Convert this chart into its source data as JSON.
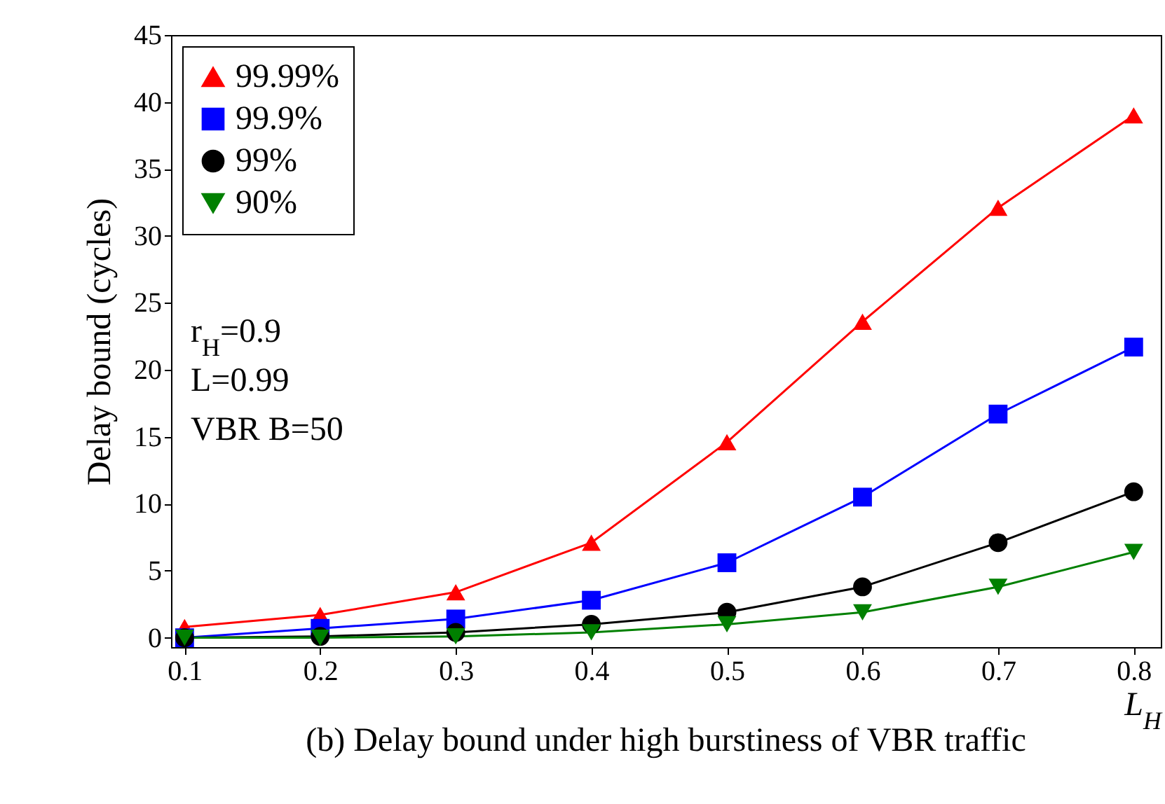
{
  "chart_data": {
    "type": "line",
    "title": "(b) Delay bound under high burstiness of VBR traffic",
    "xlabel": "L$_{H}$",
    "ylabel": "Delay bound (cycles)",
    "x": [
      0.1,
      0.2,
      0.3,
      0.4,
      0.5,
      0.6,
      0.7,
      0.8
    ],
    "series": [
      {
        "name": "99.99%",
        "color": "#ff0000",
        "marker": "triangle",
        "values": [
          0.8,
          1.7,
          3.4,
          7.1,
          14.6,
          23.6,
          32.1,
          39.0
        ]
      },
      {
        "name": "99.9%",
        "color": "#0000ff",
        "marker": "square",
        "values": [
          0.0,
          0.7,
          1.4,
          2.8,
          5.6,
          10.5,
          16.7,
          21.7
        ]
      },
      {
        "name": "99%",
        "color": "#000000",
        "marker": "circle",
        "values": [
          0.0,
          0.1,
          0.4,
          1.0,
          1.9,
          3.8,
          7.1,
          10.9
        ]
      },
      {
        "name": "90%",
        "color": "#008000",
        "marker": "triangle-down",
        "values": [
          0.0,
          0.0,
          0.1,
          0.4,
          1.0,
          1.9,
          3.8,
          6.4
        ]
      }
    ],
    "xlim": [
      0.09,
      0.82
    ],
    "xticks": [
      0.1,
      0.2,
      0.3,
      0.4,
      0.5,
      0.6,
      0.7,
      0.8
    ],
    "ylim": [
      -0.7,
      45
    ],
    "yticks": [
      0,
      5,
      10,
      15,
      20,
      25,
      30,
      35,
      40,
      45
    ],
    "grid": false,
    "legend": "top left",
    "line_style": "solid",
    "annotations": [
      "r$_{H}$=0.9",
      "L=0.99",
      "VBR B=50"
    ]
  }
}
